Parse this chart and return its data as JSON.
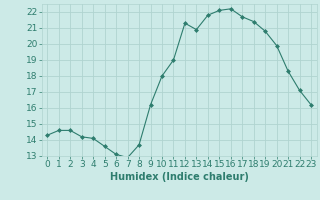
{
  "x": [
    0,
    1,
    2,
    3,
    4,
    5,
    6,
    7,
    8,
    9,
    10,
    11,
    12,
    13,
    14,
    15,
    16,
    17,
    18,
    19,
    20,
    21,
    22,
    23
  ],
  "y": [
    14.3,
    14.6,
    14.6,
    14.2,
    14.1,
    13.6,
    13.1,
    12.9,
    13.7,
    16.2,
    18.0,
    19.0,
    21.3,
    20.9,
    21.8,
    22.1,
    22.2,
    21.7,
    21.4,
    20.8,
    19.9,
    18.3,
    17.1,
    16.2
  ],
  "line_color": "#2e7d6e",
  "marker": "D",
  "marker_size": 2.0,
  "bg_color": "#cceae7",
  "grid_color": "#b0d4d0",
  "xlabel": "Humidex (Indice chaleur)",
  "ylim": [
    13,
    22.5
  ],
  "xlim": [
    -0.5,
    23.5
  ],
  "yticks": [
    13,
    14,
    15,
    16,
    17,
    18,
    19,
    20,
    21,
    22
  ],
  "xticks": [
    0,
    1,
    2,
    3,
    4,
    5,
    6,
    7,
    8,
    9,
    10,
    11,
    12,
    13,
    14,
    15,
    16,
    17,
    18,
    19,
    20,
    21,
    22,
    23
  ],
  "tick_color": "#2e7d6e",
  "label_color": "#2e7d6e",
  "font_size": 6.5,
  "xlabel_fontsize": 7.0,
  "linewidth": 0.8
}
